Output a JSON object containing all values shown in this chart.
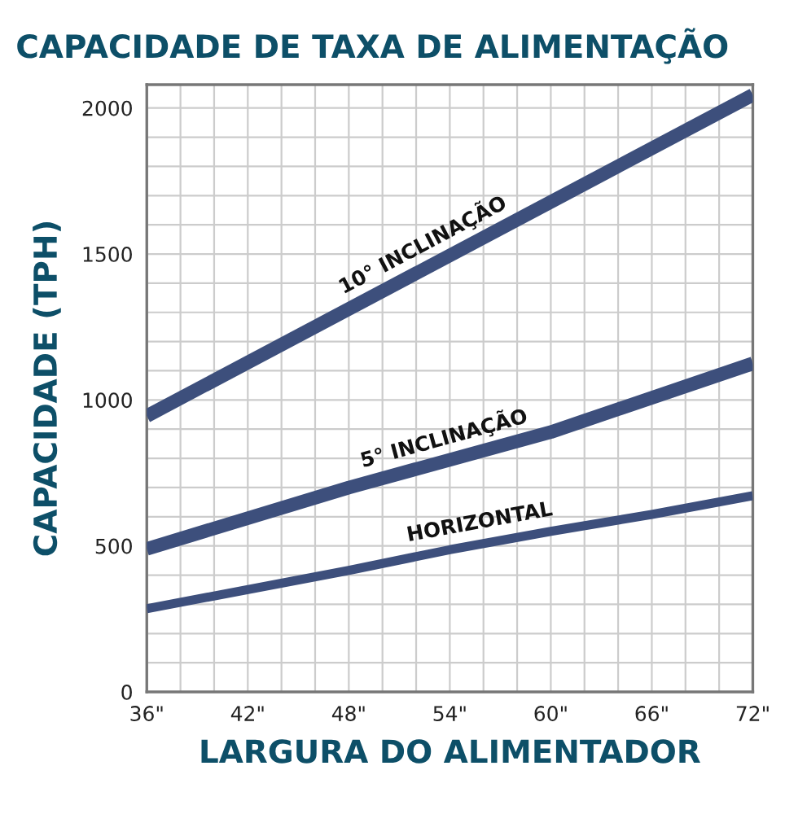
{
  "chart_data": {
    "type": "line",
    "title": "CAPACIDADE DE TAXA DE ALIMENTAÇÃO",
    "xlabel": "LARGURA DO ALIMENTADOR",
    "ylabel": "CAPACIDADE (TPH)",
    "series": [
      {
        "x": [
          36,
          72
        ],
        "values": [
          945,
          2045
        ],
        "color": "#3d4f7c"
      },
      {
        "x": [
          36,
          48,
          60,
          72
        ],
        "values": [
          490,
          700,
          890,
          1125
        ],
        "color": "#3d4f7c"
      },
      {
        "x": [
          36,
          48,
          54,
          60,
          66,
          72
        ],
        "values": [
          285,
          416,
          487,
          550,
          608,
          672
        ],
        "color": "#3d4f7c"
      }
    ],
    "annotations": [
      {
        "text": "10° INCLINAÇÃO",
        "x": 53,
        "y": 1464
      },
      {
        "text": "5° INCLINAÇÃO",
        "x": 54,
        "y": 795
      },
      {
        "text": "HORIZONTAL",
        "x": 56,
        "y": 508
      }
    ],
    "xlim": [
      36,
      72
    ],
    "ylim": [
      0,
      2080
    ],
    "xticks": [
      {
        "value": 36,
        "label": "36\""
      },
      {
        "value": 38,
        "label": null
      },
      {
        "value": 40,
        "label": null
      },
      {
        "value": 42,
        "label": "42\""
      },
      {
        "value": 44,
        "label": null
      },
      {
        "value": 46,
        "label": null
      },
      {
        "value": 48,
        "label": "48\""
      },
      {
        "value": 50,
        "label": null
      },
      {
        "value": 52,
        "label": null
      },
      {
        "value": 54,
        "label": "54\""
      },
      {
        "value": 56,
        "label": null
      },
      {
        "value": 58,
        "label": null
      },
      {
        "value": 60,
        "label": "60\""
      },
      {
        "value": 62,
        "label": null
      },
      {
        "value": 64,
        "label": null
      },
      {
        "value": 66,
        "label": "66\""
      },
      {
        "value": 68,
        "label": null
      },
      {
        "value": 70,
        "label": null
      },
      {
        "value": 72,
        "label": "72\""
      }
    ],
    "yticks": [
      0,
      {
        "value": 100,
        "label": null
      },
      {
        "value": 200,
        "label": null
      },
      {
        "value": 300,
        "label": null
      },
      {
        "value": 400,
        "label": null
      },
      500,
      {
        "value": 600,
        "label": null
      },
      {
        "value": 700,
        "label": null
      },
      {
        "value": 800,
        "label": null
      },
      {
        "value": 900,
        "label": null
      },
      1000,
      {
        "value": 1100,
        "label": null
      },
      {
        "value": 1200,
        "label": null
      },
      {
        "value": 1300,
        "label": null
      },
      {
        "value": 1400,
        "label": null
      },
      1500,
      {
        "value": 1600,
        "label": null
      },
      {
        "value": 1700,
        "label": null
      },
      {
        "value": 1800,
        "label": null
      },
      {
        "value": 1900,
        "label": null
      },
      2000
    ],
    "grid": true,
    "legend": false,
    "marker": "none",
    "line_style": "solid"
  }
}
